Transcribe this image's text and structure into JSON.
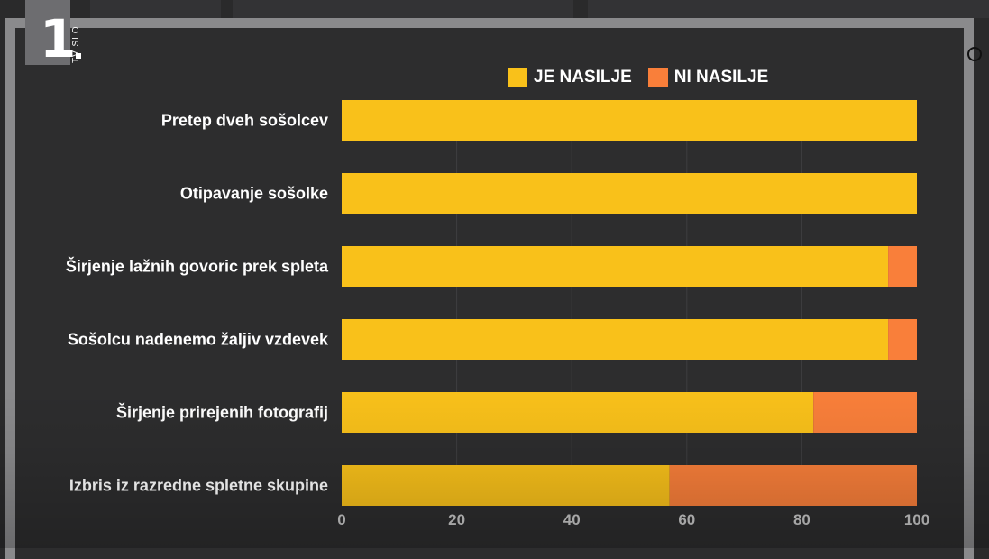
{
  "broadcaster": {
    "channel_number": "1",
    "channel_tag": "TV SLO"
  },
  "legend": [
    {
      "label": "JE NASILJE",
      "color": "#f9c11a"
    },
    {
      "label": "NI NASILJE",
      "color": "#f97f3a"
    }
  ],
  "chart_data": {
    "type": "bar",
    "orientation": "horizontal",
    "stacked": true,
    "categories": [
      "Pretep dveh sošolcev",
      "Otipavanje sošolke",
      "Širjenje lažnih govoric prek spleta",
      "Sošolcu nadenemo žaljiv vzdevek",
      "Širjenje prirejenih fotografij",
      "Izbris iz razredne spletne skupine"
    ],
    "series": [
      {
        "name": "JE NASILJE",
        "color": "#f9c11a",
        "values": [
          100,
          100,
          95,
          95,
          82,
          57
        ]
      },
      {
        "name": "NI NASILJE",
        "color": "#f97f3a",
        "values": [
          0,
          0,
          5,
          5,
          18,
          43
        ]
      }
    ],
    "xlim": [
      0,
      100
    ],
    "xticks": [
      "0",
      "20",
      "40",
      "60",
      "80",
      "100"
    ],
    "grid": true,
    "legend_position": "top"
  }
}
